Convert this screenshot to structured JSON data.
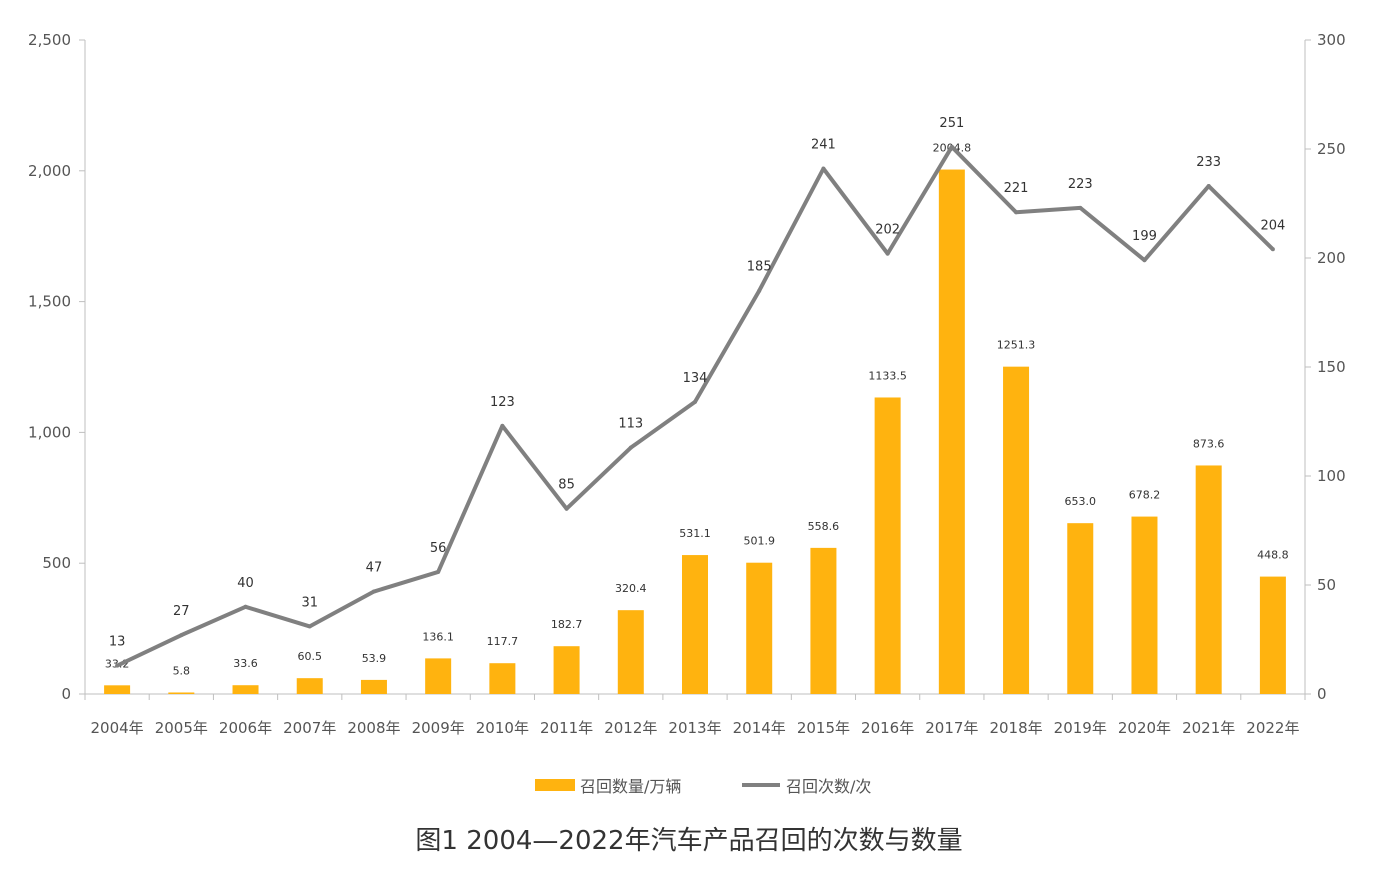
{
  "caption": "图1 2004—2022年汽车产品召回的次数与数量",
  "chart_data": {
    "type": "bar",
    "categories": [
      "2004年",
      "2005年",
      "2006年",
      "2007年",
      "2008年",
      "2009年",
      "2010年",
      "2011年",
      "2012年",
      "2013年",
      "2014年",
      "2015年",
      "2016年",
      "2017年",
      "2018年",
      "2019年",
      "2020年",
      "2021年",
      "2022年"
    ],
    "series": [
      {
        "name": "召回数量/万辆",
        "type": "bar",
        "axis": "left",
        "color": "#FFB30F",
        "values": [
          33.2,
          5.8,
          33.6,
          60.5,
          53.9,
          136.1,
          117.7,
          182.7,
          320.4,
          531.1,
          501.9,
          558.6,
          1133.5,
          2004.8,
          1251.3,
          653.0,
          678.2,
          873.6,
          448.8
        ],
        "labels": [
          "33.2",
          "5.8",
          "33.6",
          "60.5",
          "53.9",
          "136.1",
          "117.7",
          "182.7",
          "320.4",
          "531.1",
          "501.9",
          "558.6",
          "1133.5",
          "2004.8",
          "1251.3",
          "653.0",
          "678.2",
          "873.6",
          "448.8"
        ]
      },
      {
        "name": "召回次数/次",
        "type": "line",
        "axis": "right",
        "color": "#808080",
        "values": [
          13,
          27,
          40,
          31,
          47,
          56,
          123,
          85,
          113,
          134,
          185,
          241,
          202,
          251,
          221,
          223,
          199,
          233,
          204
        ]
      }
    ],
    "ylim": [
      0,
      2500
    ],
    "yticks": [
      "0",
      "500",
      "1,000",
      "1,500",
      "2,000",
      "2,500"
    ],
    "y2lim": [
      0,
      300
    ],
    "y2ticks": [
      "0",
      "50",
      "100",
      "150",
      "200",
      "250",
      "300"
    ],
    "legend_position": "bottom",
    "grid": false
  }
}
